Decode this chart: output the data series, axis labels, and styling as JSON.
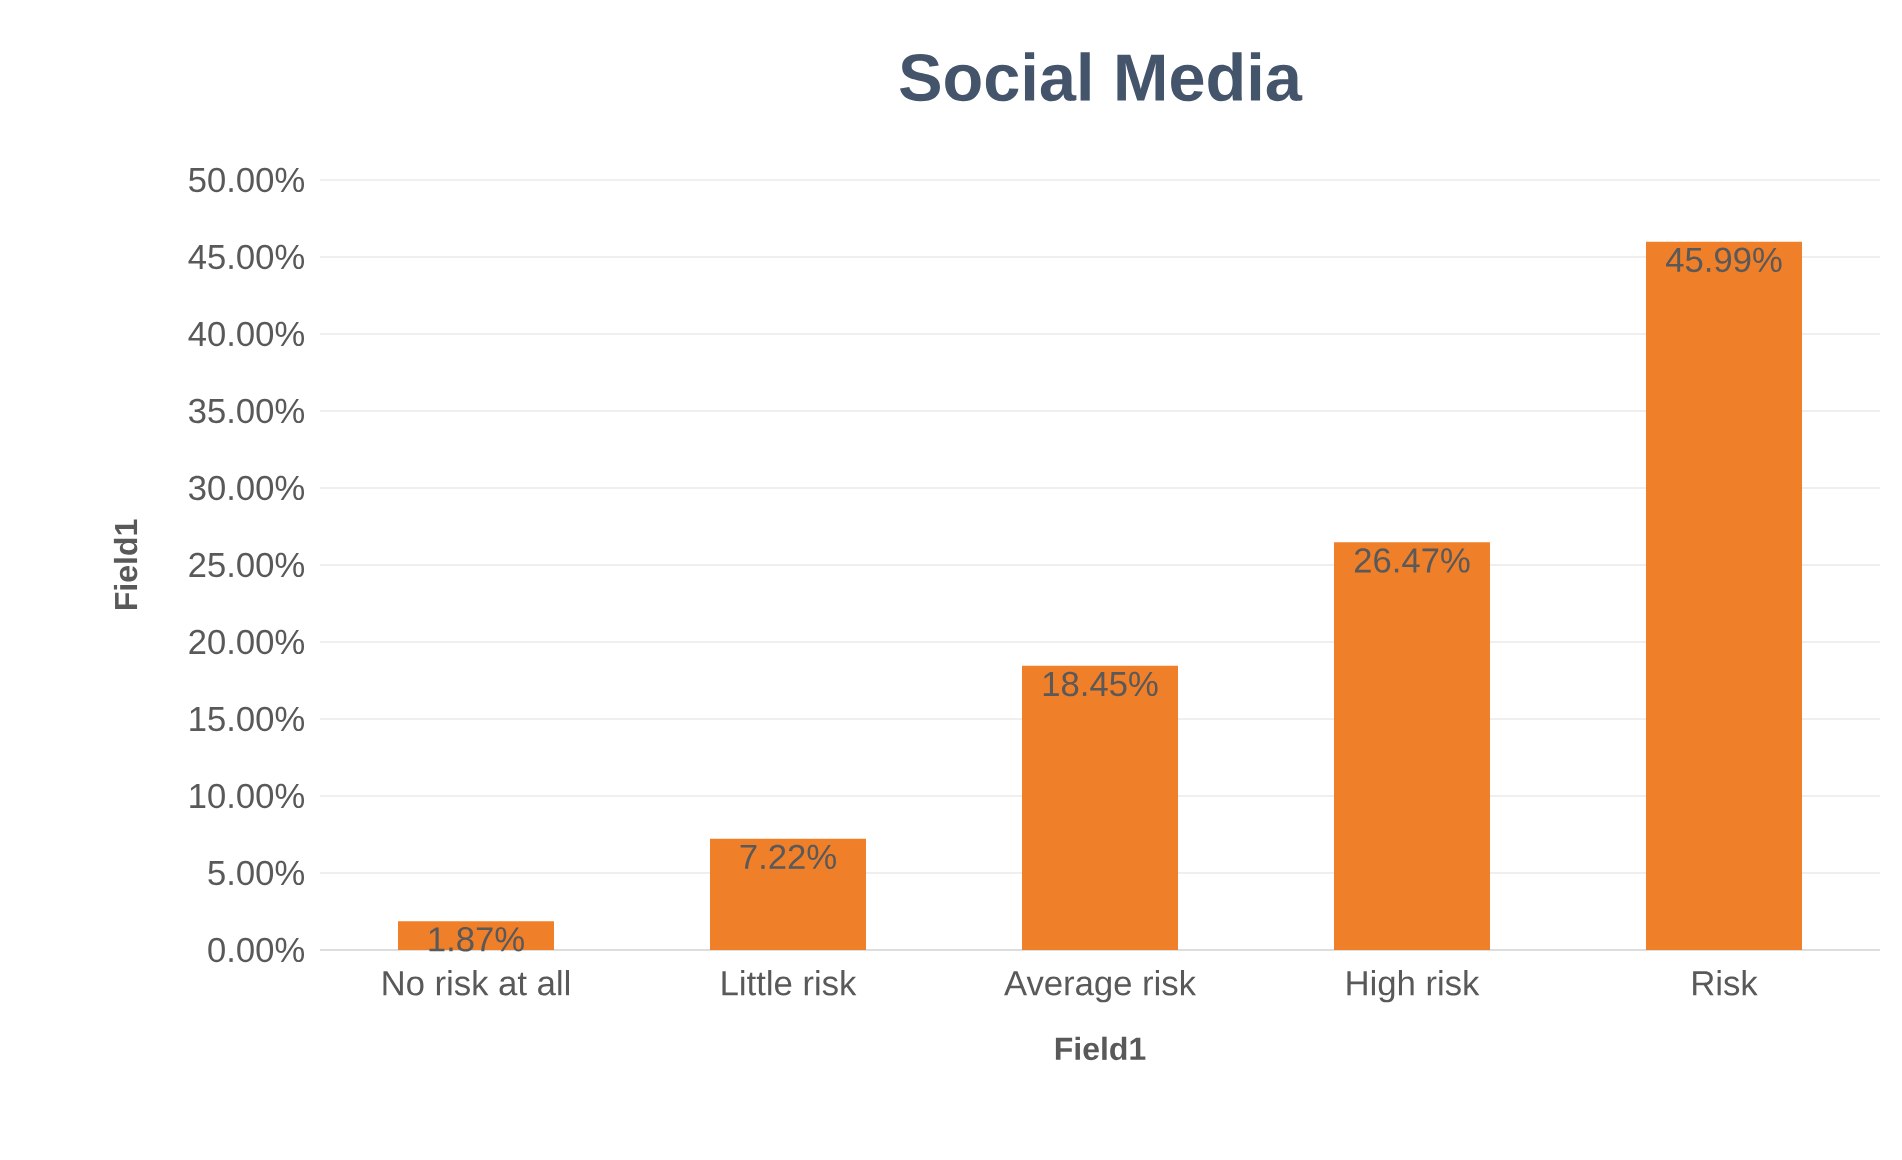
{
  "chart_data": {
    "type": "bar",
    "title": "Social Media",
    "xlabel": "Field1",
    "ylabel": "Field1",
    "categories": [
      "No risk at all",
      "Little risk",
      "Average risk",
      "High risk",
      "Risk"
    ],
    "values": [
      1.87,
      7.22,
      18.45,
      26.47,
      45.99
    ],
    "value_labels": [
      "1.87%",
      "7.22%",
      "18.45%",
      "26.47%",
      "45.99%"
    ],
    "color": "#f07f2a",
    "ylim": [
      0,
      50
    ],
    "yticks": [
      {
        "value": 0,
        "label": "0.00%"
      },
      {
        "value": 5,
        "label": "5.00%"
      },
      {
        "value": 10,
        "label": "10.00%"
      },
      {
        "value": 15,
        "label": "15.00%"
      },
      {
        "value": 20,
        "label": "20.00%"
      },
      {
        "value": 25,
        "label": "25.00%"
      },
      {
        "value": 30,
        "label": "30.00%"
      },
      {
        "value": 35,
        "label": "35.00%"
      },
      {
        "value": 40,
        "label": "40.00%"
      },
      {
        "value": 45,
        "label": "45.00%"
      },
      {
        "value": 50,
        "label": "50.00%"
      }
    ],
    "grid": "y"
  }
}
